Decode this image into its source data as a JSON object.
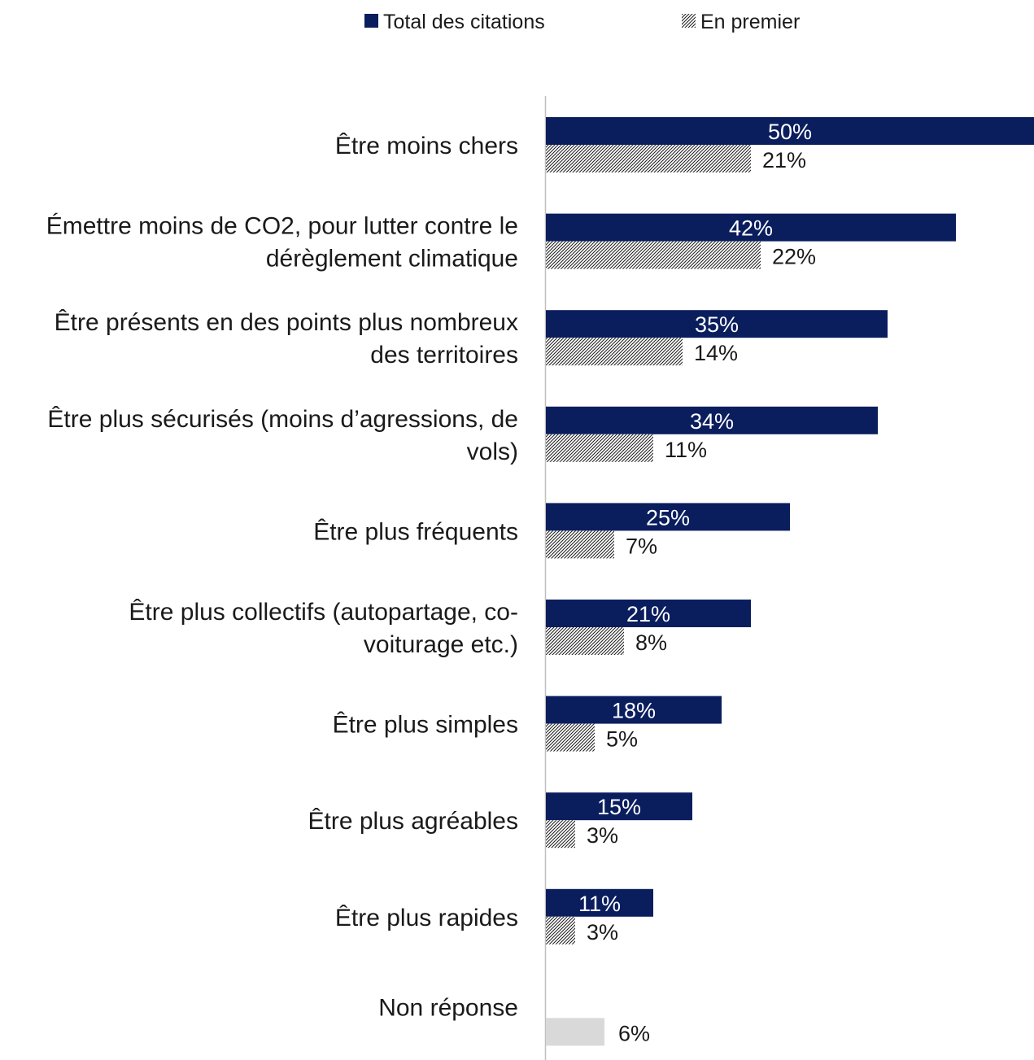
{
  "chart_data": {
    "type": "bar",
    "orientation": "horizontal",
    "categories": [
      [
        "Être moins chers"
      ],
      [
        "Émettre moins de CO2, pour lutter contre le",
        "dérèglement climatique"
      ],
      [
        "Être présents en des points plus nombreux",
        "des territoires"
      ],
      [
        "Être plus sécurisés (moins d’agressions, de",
        "vols)"
      ],
      [
        "Être plus fréquents"
      ],
      [
        "Être plus collectifs (autopartage, co-",
        "voiturage etc.)"
      ],
      [
        "Être plus simples"
      ],
      [
        "Être plus agréables"
      ],
      [
        "Être plus rapides"
      ],
      [
        "Non réponse"
      ]
    ],
    "series": [
      {
        "name": "Total des citations",
        "color": "#0a1e5e",
        "values": [
          50,
          42,
          35,
          34,
          25,
          21,
          18,
          15,
          11,
          null
        ],
        "labels": [
          "50%",
          "42%",
          "35%",
          "34%",
          "25%",
          "21%",
          "18%",
          "15%",
          "11%",
          ""
        ]
      },
      {
        "name": "En premier",
        "pattern": "diagonal-hatch",
        "color": "#1a1a1a",
        "values": [
          21,
          22,
          14,
          11,
          7,
          8,
          5,
          3,
          3,
          6
        ],
        "labels": [
          "21%",
          "22%",
          "14%",
          "11%",
          "7%",
          "8%",
          "5%",
          "3%",
          "3%",
          "6%"
        ]
      }
    ],
    "special_bar_color": "#d9d9d9",
    "xlim": [
      0,
      50
    ],
    "grid": false,
    "legend_position": "top",
    "title": "",
    "xlabel": "",
    "ylabel": ""
  }
}
